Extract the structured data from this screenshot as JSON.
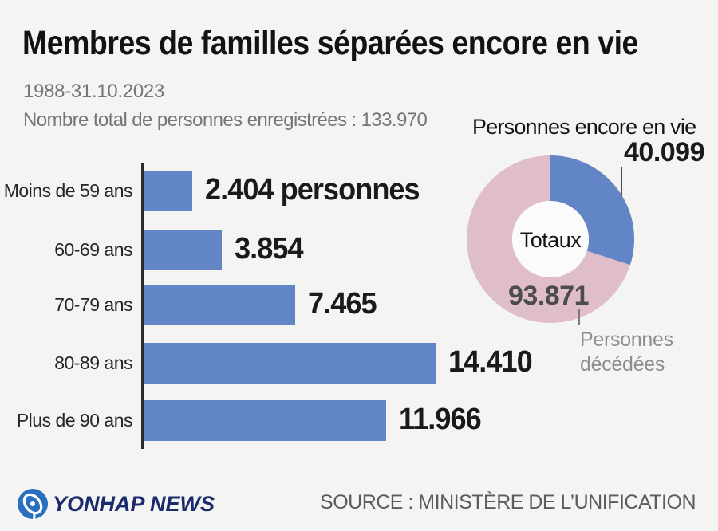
{
  "header": {
    "title": "Membres de familles séparées encore en vie",
    "period": "1988-31.10.2023",
    "registered_total_line": "Nombre total de personnes enregistrées : 133.970"
  },
  "colors": {
    "background": "#f4f4f2",
    "bar_blue": "#6286c5",
    "donut_blue": "#6286c5",
    "donut_pink": "#dfbeca",
    "donut_hole": "#fcfbfb",
    "axis": "#2a2a2a"
  },
  "chart_data": [
    {
      "type": "bar",
      "orientation": "horizontal",
      "categories": [
        "Moins de 59 ans",
        "60-69 ans",
        "70-79 ans",
        "80-89 ans",
        "Plus de 90 ans"
      ],
      "values": [
        2404,
        3854,
        7465,
        14410,
        11966
      ],
      "display_values": [
        "2.404 personnes",
        "3.854",
        "7.465",
        "14.410",
        "11.966"
      ],
      "title": "Membres de familles séparées encore en vie",
      "xlabel": "",
      "ylabel": "",
      "xlim": [
        0,
        14410
      ],
      "grid": false,
      "legend": false,
      "bar_color": "#6286c5"
    },
    {
      "type": "pie",
      "subtype": "donut",
      "center_label": "Totaux",
      "total": 133970,
      "slices": [
        {
          "label": "Personnes encore en vie",
          "value": 40099,
          "display": "40.099",
          "color": "#6286c5"
        },
        {
          "label": "Personnes décédées",
          "value": 93871,
          "display": "93.871",
          "color": "#dfbeca"
        }
      ],
      "start_angle_deg": 0,
      "direction": "clockwise",
      "legend": false
    }
  ],
  "donut_labels": {
    "alive_title": "Personnes encore en vie",
    "alive_value": "40.099",
    "center": "Totaux",
    "dead_value": "93.871",
    "dead_label_line1": "Personnes",
    "dead_label_line2": "décédées"
  },
  "footer": {
    "logo_text": "YONHAP NEWS",
    "source": "SOURCE : MINISTÈRE DE L’UNIFICATION"
  }
}
